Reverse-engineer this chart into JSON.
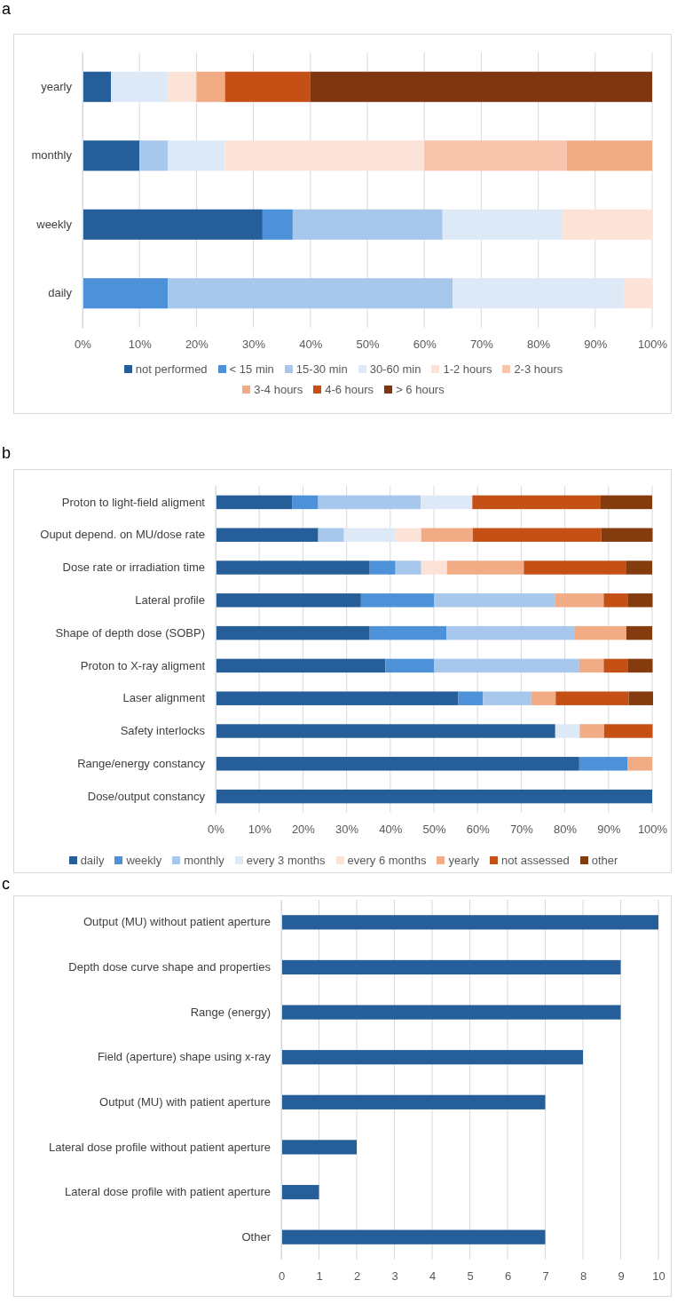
{
  "chart_data": [
    {
      "type": "bar",
      "title": "a",
      "orientation": "horizontal",
      "stacked": true,
      "categories": [
        "yearly",
        "monthly",
        "weekly",
        "daily"
      ],
      "xlim": [
        0,
        100
      ],
      "xticks": [
        {
          "value": 0,
          "label": "0%"
        },
        {
          "value": 10,
          "label": "10%"
        },
        {
          "value": 20,
          "label": "20%"
        },
        {
          "value": 30,
          "label": "30%"
        },
        {
          "value": 40,
          "label": "40%"
        },
        {
          "value": 50,
          "label": "50%"
        },
        {
          "value": 60,
          "label": "60%"
        },
        {
          "value": 70,
          "label": "70%"
        },
        {
          "value": 80,
          "label": "80%"
        },
        {
          "value": 90,
          "label": "90%"
        },
        {
          "value": 100,
          "label": "100%"
        }
      ],
      "grid": "x",
      "legend": "bottom",
      "series": [
        {
          "name": "not performed",
          "color": "#255e99",
          "values": [
            5,
            10,
            31.6,
            0
          ]
        },
        {
          "name": "< 15 min",
          "color": "#4d91d9",
          "values": [
            0,
            0,
            5.3,
            15
          ]
        },
        {
          "name": "15-30 min",
          "color": "#a7c8ec",
          "values": [
            0,
            5,
            26.3,
            50
          ]
        },
        {
          "name": "30-60 min",
          "color": "#dde9f7",
          "values": [
            10,
            10,
            21.1,
            30
          ]
        },
        {
          "name": "1-2 hours",
          "color": "#fbe3d7",
          "values": [
            5,
            35,
            15.7,
            5
          ]
        },
        {
          "name": "2-3 hours",
          "color": "#f8c4ac",
          "values": [
            0,
            25,
            0,
            0
          ]
        },
        {
          "name": "3-4 hours",
          "color": "#f1ab85",
          "values": [
            5,
            15,
            0,
            0
          ]
        },
        {
          "name": "4-6 hours",
          "color": "#c55015",
          "values": [
            15,
            0,
            0,
            0
          ]
        },
        {
          "name": "> 6 hours",
          "color": "#7f3510",
          "values": [
            60,
            0,
            0,
            0
          ]
        }
      ]
    },
    {
      "type": "bar",
      "title": "b",
      "orientation": "horizontal",
      "stacked": true,
      "categories": [
        "Proton to light-field aligment",
        "Ouput depend. on MU/dose rate",
        "Dose rate or irradiation time",
        "Lateral profile",
        "Shape of depth dose (SOBP)",
        "Proton to X-ray aligment",
        "Laser alignment",
        "Safety interlocks",
        "Range/energy constancy",
        "Dose/output constancy"
      ],
      "xlim": [
        0,
        100
      ],
      "xticks": [
        {
          "value": 0,
          "label": "0%"
        },
        {
          "value": 10,
          "label": "10%"
        },
        {
          "value": 20,
          "label": "20%"
        },
        {
          "value": 30,
          "label": "30%"
        },
        {
          "value": 40,
          "label": "40%"
        },
        {
          "value": 50,
          "label": "50%"
        },
        {
          "value": 60,
          "label": "60%"
        },
        {
          "value": 70,
          "label": "70%"
        },
        {
          "value": 80,
          "label": "80%"
        },
        {
          "value": 90,
          "label": "90%"
        },
        {
          "value": 100,
          "label": "100%"
        }
      ],
      "grid": "x",
      "legend": "bottom",
      "series": [
        {
          "name": "daily",
          "color": "#255e99",
          "values": [
            17.6,
            23.5,
            35.3,
            33.3,
            35.3,
            38.9,
            55.6,
            77.8,
            83.3,
            100
          ]
        },
        {
          "name": "weekly",
          "color": "#4d91d9",
          "values": [
            5.9,
            0,
            5.9,
            16.7,
            17.6,
            11.1,
            5.6,
            0,
            11.1,
            0
          ]
        },
        {
          "name": "monthly",
          "color": "#a7c8ec",
          "values": [
            23.5,
            5.9,
            5.9,
            27.8,
            29.4,
            33.3,
            11.1,
            0,
            0,
            0
          ]
        },
        {
          "name": "every 3 months",
          "color": "#dde9f7",
          "values": [
            11.8,
            11.8,
            0,
            0,
            0,
            0,
            0,
            5.6,
            0,
            0
          ]
        },
        {
          "name": "every 6 months",
          "color": "#fbe3d7",
          "values": [
            0,
            5.9,
            5.9,
            0,
            0,
            0,
            0,
            0,
            0,
            0
          ]
        },
        {
          "name": "yearly",
          "color": "#f1ab85",
          "values": [
            0,
            11.8,
            17.6,
            11.1,
            11.8,
            5.6,
            5.6,
            5.6,
            5.6,
            0
          ]
        },
        {
          "name": "not  assessed",
          "color": "#c55015",
          "values": [
            29.4,
            29.4,
            23.5,
            5.6,
            0,
            5.6,
            16.7,
            11.1,
            0,
            0
          ]
        },
        {
          "name": "other",
          "color": "#843c0f",
          "values": [
            11.8,
            11.8,
            5.9,
            5.6,
            5.9,
            5.6,
            5.6,
            0,
            0,
            0
          ]
        }
      ]
    },
    {
      "type": "bar",
      "title": "c",
      "orientation": "horizontal",
      "categories": [
        "Output (MU) without patient aperture",
        "Depth dose curve shape and properties",
        "Range (energy)",
        "Field (aperture) shape using x-ray",
        "Output (MU) with patient aperture",
        "Lateral dose profile without patient aperture",
        "Lateral dose profile with patient aperture",
        "Other"
      ],
      "xlim": [
        0,
        10
      ],
      "xticks": [
        0,
        1,
        2,
        3,
        4,
        5,
        6,
        7,
        8,
        9,
        10
      ],
      "grid": "x",
      "series": [
        {
          "color": "#255e99",
          "values": [
            10,
            9,
            9,
            8,
            7,
            2,
            1,
            7
          ]
        }
      ]
    }
  ]
}
